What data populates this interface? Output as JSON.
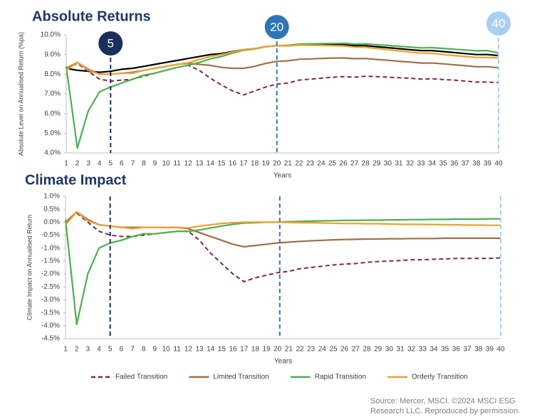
{
  "chart_data": [
    {
      "type": "line",
      "title": "Absolute Returns",
      "y_label": "Absolute Level on Annualised Return (%pa)",
      "x_label": "Years",
      "x": [
        1,
        2,
        3,
        4,
        5,
        6,
        7,
        8,
        9,
        10,
        11,
        12,
        13,
        14,
        15,
        16,
        17,
        18,
        19,
        20,
        21,
        22,
        23,
        24,
        25,
        26,
        27,
        28,
        29,
        30,
        31,
        32,
        33,
        34,
        35,
        36,
        37,
        38,
        39,
        40
      ],
      "xlim": [
        1,
        40
      ],
      "ylim": [
        4,
        10
      ],
      "yticks": [
        {
          "value": 4,
          "label": "4.0%"
        },
        {
          "value": 5,
          "label": "5.0%"
        },
        {
          "value": 6,
          "label": "6.0%"
        },
        {
          "value": 7,
          "label": "7.0%"
        },
        {
          "value": 8,
          "label": "8.0%"
        },
        {
          "value": 9,
          "label": "9.0%"
        },
        {
          "value": 10,
          "label": "10.0%"
        }
      ],
      "grid": false,
      "vlines": [
        5,
        20,
        40
      ],
      "vline_colors": [
        "#1b2f5b",
        "#2e75b6",
        "#a9d0f0"
      ],
      "vline_badges": true,
      "series": [
        {
          "color": "#000000",
          "line_style": "solid",
          "values": [
            8.3,
            8.2,
            8.15,
            8.1,
            8.15,
            8.25,
            8.3,
            8.4,
            8.5,
            8.6,
            8.7,
            8.8,
            8.9,
            9.0,
            9.05,
            9.15,
            9.25,
            9.3,
            9.4,
            9.45,
            9.45,
            9.5,
            9.5,
            9.5,
            9.5,
            9.5,
            9.45,
            9.45,
            9.4,
            9.35,
            9.3,
            9.25,
            9.2,
            9.2,
            9.15,
            9.1,
            9.05,
            9.0,
            9.0,
            8.95
          ]
        },
        {
          "color": "#7b2a45",
          "line_style": "dashed",
          "values": [
            8.3,
            8.55,
            8.15,
            7.75,
            7.65,
            7.7,
            7.75,
            7.9,
            8.05,
            8.2,
            8.35,
            8.45,
            8.2,
            7.8,
            7.45,
            7.15,
            6.95,
            7.15,
            7.35,
            7.5,
            7.55,
            7.7,
            7.75,
            7.8,
            7.85,
            7.88,
            7.85,
            7.9,
            7.88,
            7.85,
            7.82,
            7.8,
            7.75,
            7.77,
            7.73,
            7.7,
            7.65,
            7.6,
            7.6,
            7.57
          ]
        },
        {
          "color": "#a0704a",
          "line_style": "solid",
          "values": [
            8.3,
            8.6,
            8.25,
            8.0,
            8.0,
            8.05,
            8.1,
            8.2,
            8.3,
            8.4,
            8.5,
            8.55,
            8.5,
            8.45,
            8.35,
            8.3,
            8.3,
            8.4,
            8.55,
            8.65,
            8.68,
            8.76,
            8.78,
            8.8,
            8.82,
            8.83,
            8.79,
            8.8,
            8.75,
            8.71,
            8.66,
            8.62,
            8.57,
            8.57,
            8.53,
            8.48,
            8.43,
            8.38,
            8.38,
            8.33
          ]
        },
        {
          "color": "#4caf50",
          "line_style": "solid",
          "values": [
            8.4,
            4.25,
            6.15,
            7.1,
            7.35,
            7.55,
            7.75,
            7.95,
            8.05,
            8.2,
            8.35,
            8.45,
            8.6,
            8.78,
            8.9,
            9.07,
            9.22,
            9.28,
            9.4,
            9.45,
            9.47,
            9.53,
            9.54,
            9.55,
            9.56,
            9.57,
            9.53,
            9.54,
            9.5,
            9.46,
            9.42,
            9.38,
            9.34,
            9.35,
            9.31,
            9.27,
            9.23,
            9.19,
            9.2,
            9.08
          ]
        },
        {
          "color": "#f0a030",
          "line_style": "solid",
          "values": [
            8.2,
            8.6,
            8.2,
            8.0,
            8.0,
            8.05,
            8.05,
            8.2,
            8.3,
            8.4,
            8.5,
            8.58,
            8.75,
            8.9,
            9.0,
            9.13,
            9.25,
            9.3,
            9.4,
            9.45,
            9.44,
            9.48,
            9.47,
            9.46,
            9.45,
            9.44,
            9.38,
            9.37,
            9.31,
            9.25,
            9.19,
            9.13,
            9.07,
            9.06,
            9.0,
            8.95,
            8.9,
            8.85,
            8.85,
            8.83
          ]
        }
      ]
    },
    {
      "type": "line",
      "title": "Climate Impact",
      "y_label": "Climate Impact on Annualised Return",
      "x_label": "Years",
      "x": [
        1,
        2,
        3,
        4,
        5,
        6,
        7,
        8,
        9,
        10,
        11,
        12,
        13,
        14,
        15,
        16,
        17,
        18,
        19,
        20,
        21,
        22,
        23,
        24,
        25,
        26,
        27,
        28,
        29,
        30,
        31,
        32,
        33,
        34,
        35,
        36,
        37,
        38,
        39,
        40
      ],
      "xlim": [
        1,
        40
      ],
      "ylim": [
        -4.5,
        1
      ],
      "yticks": [
        {
          "value": -4.5,
          "label": "-4.5%"
        },
        {
          "value": -4,
          "label": "-4.0%"
        },
        {
          "value": -3.5,
          "label": "-3.5%"
        },
        {
          "value": -3,
          "label": "-3.0%"
        },
        {
          "value": -2.5,
          "label": "-2.5%"
        },
        {
          "value": -2,
          "label": "-2.0%"
        },
        {
          "value": -1.5,
          "label": "-1.5%"
        },
        {
          "value": -1,
          "label": "-1.0%"
        },
        {
          "value": -0.5,
          "label": "-0.5%"
        },
        {
          "value": 0,
          "label": "0.0%"
        },
        {
          "value": 0.5,
          "label": "0.5%"
        },
        {
          "value": 1,
          "label": "1.0%"
        }
      ],
      "grid": false,
      "vlines": [
        5,
        20.2,
        40
      ],
      "vline_colors": [
        "#1b2f5b",
        "#2e75b6",
        "#a9d0f0"
      ],
      "vline_badges": false,
      "legend": "bottom",
      "series": [
        {
          "name": "Failed Transition",
          "color": "#7b2a45",
          "line_style": "dashed",
          "values": [
            0,
            0.35,
            0,
            -0.35,
            -0.5,
            -0.55,
            -0.55,
            -0.5,
            -0.45,
            -0.4,
            -0.35,
            -0.35,
            -0.7,
            -1.2,
            -1.6,
            -2.0,
            -2.3,
            -2.15,
            -2.05,
            -1.95,
            -1.9,
            -1.8,
            -1.75,
            -1.7,
            -1.65,
            -1.62,
            -1.6,
            -1.55,
            -1.52,
            -1.5,
            -1.48,
            -1.45,
            -1.45,
            -1.43,
            -1.42,
            -1.4,
            -1.4,
            -1.4,
            -1.4,
            -1.38
          ]
        },
        {
          "name": "Limited Transition",
          "color": "#a0704a",
          "line_style": "solid",
          "values": [
            0,
            0.4,
            0.1,
            -0.1,
            -0.15,
            -0.2,
            -0.2,
            -0.2,
            -0.2,
            -0.2,
            -0.2,
            -0.25,
            -0.4,
            -0.55,
            -0.7,
            -0.85,
            -0.95,
            -0.9,
            -0.85,
            -0.8,
            -0.77,
            -0.74,
            -0.72,
            -0.7,
            -0.68,
            -0.67,
            -0.66,
            -0.65,
            -0.65,
            -0.64,
            -0.64,
            -0.63,
            -0.63,
            -0.63,
            -0.62,
            -0.62,
            -0.62,
            -0.62,
            -0.62,
            -0.62
          ]
        },
        {
          "name": "Rapid Transition",
          "color": "#4caf50",
          "line_style": "solid",
          "values": [
            0.1,
            -3.95,
            -2.0,
            -1.0,
            -0.8,
            -0.7,
            -0.55,
            -0.45,
            -0.45,
            -0.4,
            -0.35,
            -0.35,
            -0.3,
            -0.22,
            -0.15,
            -0.08,
            -0.03,
            -0.02,
            0,
            0,
            0.02,
            0.03,
            0.04,
            0.05,
            0.06,
            0.07,
            0.07,
            0.08,
            0.08,
            0.09,
            0.09,
            0.1,
            0.1,
            0.11,
            0.11,
            0.12,
            0.12,
            0.12,
            0.13,
            0.13
          ]
        },
        {
          "name": "Orderly Transition",
          "color": "#f0a030",
          "line_style": "solid",
          "values": [
            -0.1,
            0.4,
            0.05,
            -0.1,
            -0.15,
            -0.2,
            -0.25,
            -0.2,
            -0.2,
            -0.2,
            -0.2,
            -0.22,
            -0.15,
            -0.1,
            -0.05,
            -0.02,
            0,
            0,
            0,
            0,
            -0.01,
            -0.02,
            -0.02,
            -0.03,
            -0.04,
            -0.05,
            -0.05,
            -0.06,
            -0.06,
            -0.07,
            -0.08,
            -0.08,
            -0.09,
            -0.09,
            -0.1,
            -0.1,
            -0.11,
            -0.11,
            -0.12,
            -0.12
          ]
        }
      ]
    }
  ],
  "source": "Source: Mercer, MSCI. ©2024 MSCI ESG Research LLC. Reproduced by permission."
}
